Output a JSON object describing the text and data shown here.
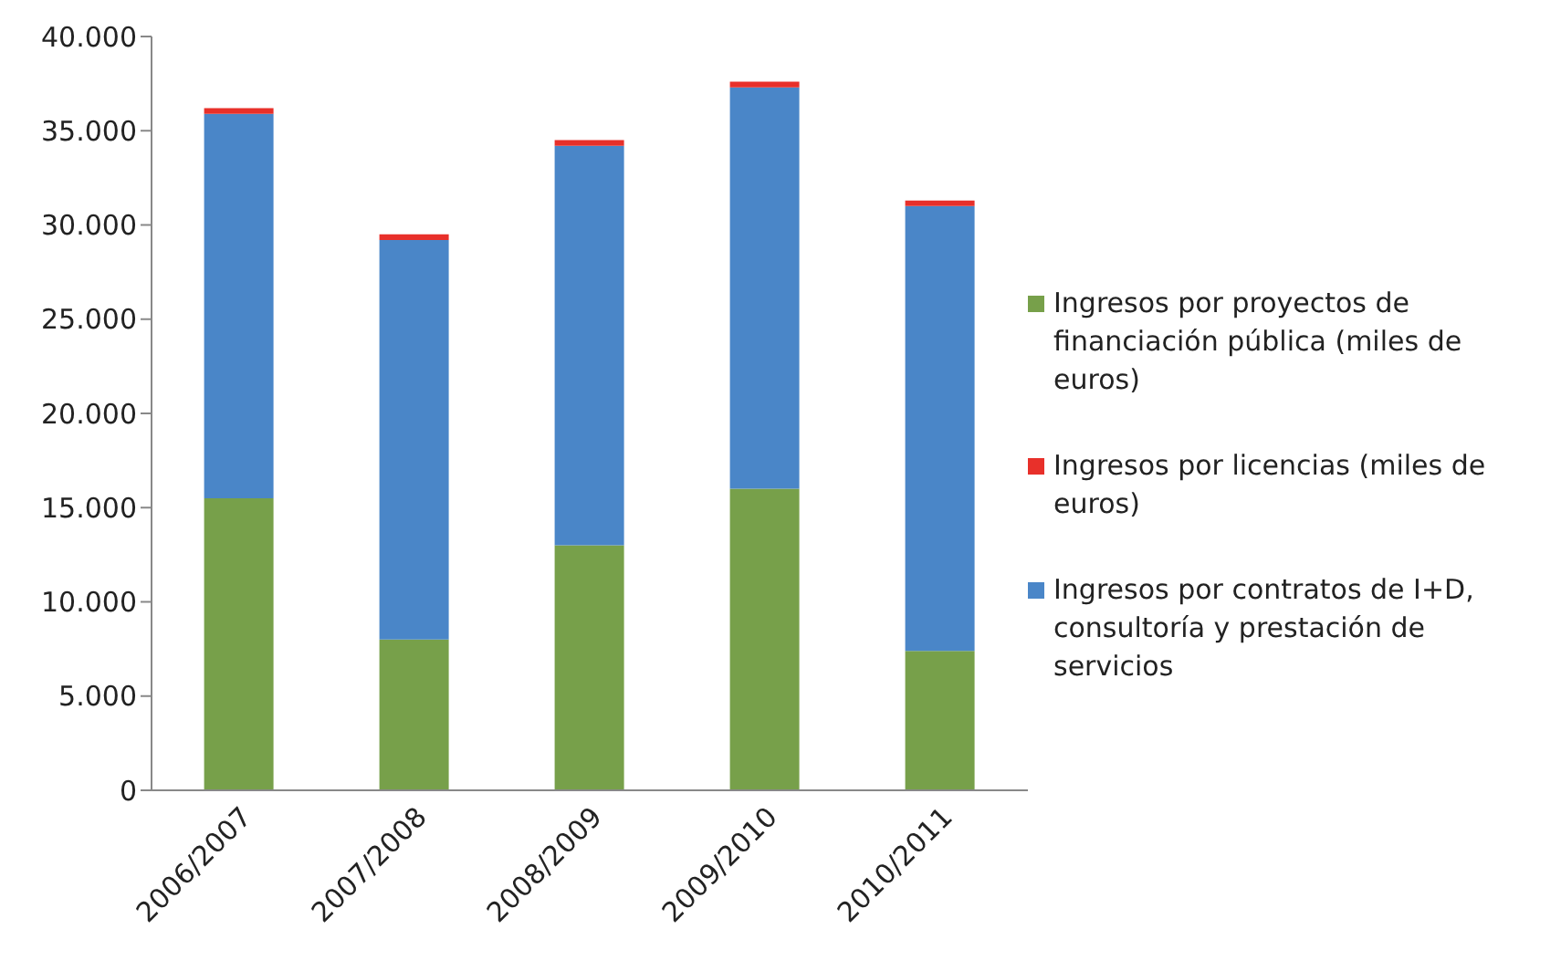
{
  "chart_data": {
    "type": "bar",
    "stacked": true,
    "categories": [
      "2006/2007",
      "2007/2008",
      "2008/2009",
      "2009/2010",
      "2010/2011"
    ],
    "series": [
      {
        "name": "Ingresos por proyectos de financiación pública (miles de euros)",
        "color": "#77a04a",
        "values": [
          15500,
          8000,
          13000,
          16000,
          7400
        ]
      },
      {
        "name": "Ingresos por contratos de I+D, consultoría y prestación de servicios",
        "color": "#4a86c8",
        "values": [
          20400,
          21200,
          21200,
          21300,
          23600
        ]
      },
      {
        "name": "Ingresos por licencias (miles de euros)",
        "color": "#e8302a",
        "values": [
          300,
          300,
          300,
          300,
          300
        ]
      }
    ],
    "ylim": [
      0,
      40000
    ],
    "yticks": [
      {
        "value": 0,
        "label": "0"
      },
      {
        "value": 5000,
        "label": "5.000"
      },
      {
        "value": 10000,
        "label": "10.000"
      },
      {
        "value": 15000,
        "label": "15.000"
      },
      {
        "value": 20000,
        "label": "20.000"
      },
      {
        "value": 25000,
        "label": "25.000"
      },
      {
        "value": 30000,
        "label": "30.000"
      },
      {
        "value": 35000,
        "label": "35.000"
      },
      {
        "value": 40000,
        "label": "40.000"
      }
    ],
    "grid": false,
    "legend": "right"
  }
}
